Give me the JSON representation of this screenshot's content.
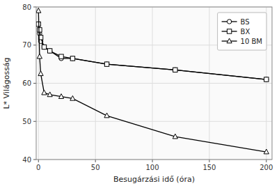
{
  "chart_data": {
    "type": "line",
    "xlabel": "Besugárzási idő (óra)",
    "ylabel": "L* Világosság",
    "x": [
      0,
      1,
      2,
      5,
      10,
      20,
      30,
      60,
      120,
      200
    ],
    "series": [
      {
        "name": "BS",
        "color": "#000000",
        "marker": "circle",
        "values": [
          75.5,
          73.0,
          71.0,
          69.5,
          68.5,
          66.5,
          66.5,
          65.0,
          63.5,
          61.0
        ]
      },
      {
        "name": "BX",
        "color": "#000000",
        "marker": "square",
        "values": [
          75.5,
          74.0,
          72.0,
          69.5,
          68.5,
          67.0,
          66.5,
          65.0,
          63.5,
          61.0
        ]
      },
      {
        "name": "10 BM",
        "color": "#000000",
        "marker": "triangle",
        "values": [
          79.0,
          67.0,
          62.5,
          57.5,
          57.0,
          56.5,
          56.0,
          51.5,
          46.0,
          42.0
        ]
      }
    ],
    "xlim": [
      -2,
      205
    ],
    "xticks": [
      0,
      50,
      100,
      150,
      200
    ],
    "ylim": [
      40,
      80
    ],
    "yticks": [
      40,
      50,
      60,
      70,
      80
    ],
    "grid": true,
    "legend": "upper right"
  }
}
